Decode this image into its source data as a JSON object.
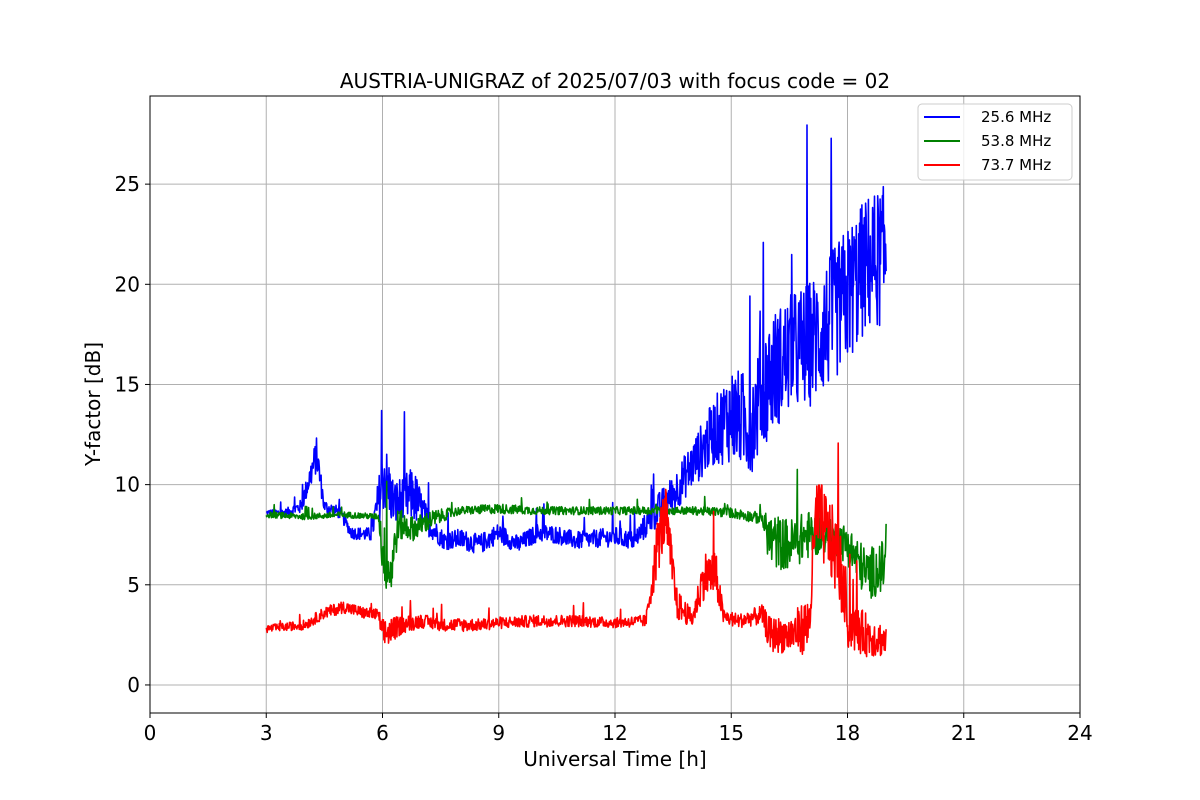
{
  "chart_data": {
    "type": "line",
    "title": "AUSTRIA-UNIGRAZ of 2025/07/03 with focus code = 02",
    "xlabel": "Universal Time [h]",
    "ylabel": "Y-factor [dB]",
    "xlim": [
      0,
      24
    ],
    "ylim": [
      -1.4,
      29.4
    ],
    "xticks": [
      0,
      3,
      6,
      9,
      12,
      15,
      18,
      21,
      24
    ],
    "yticks": [
      0,
      5,
      10,
      15,
      20,
      25
    ],
    "grid": true,
    "legend_position": "top-right",
    "series": [
      {
        "name": "25.6 MHz",
        "color": "#0000ff",
        "points": [
          [
            3.0,
            8.6
          ],
          [
            3.5,
            8.6
          ],
          [
            3.9,
            8.9
          ],
          [
            4.3,
            11.5
          ],
          [
            4.5,
            8.9
          ],
          [
            4.9,
            8.6
          ],
          [
            5.2,
            7.6
          ],
          [
            5.7,
            7.5
          ],
          [
            6.05,
            10.5
          ],
          [
            6.3,
            9.0
          ],
          [
            6.8,
            9.5
          ],
          [
            7.2,
            8.0
          ],
          [
            7.6,
            7.2
          ],
          [
            8.0,
            7.3
          ],
          [
            8.5,
            7.0
          ],
          [
            9.0,
            7.6
          ],
          [
            9.5,
            7.0
          ],
          [
            10.0,
            7.6
          ],
          [
            10.5,
            7.5
          ],
          [
            11.0,
            7.2
          ],
          [
            11.5,
            7.3
          ],
          [
            12.0,
            7.4
          ],
          [
            12.5,
            7.2
          ],
          [
            13.0,
            8.5
          ],
          [
            13.5,
            9.5
          ],
          [
            14.0,
            11.0
          ],
          [
            14.5,
            12.5
          ],
          [
            15.0,
            13.5
          ],
          [
            15.5,
            13.0
          ],
          [
            16.0,
            15.5
          ],
          [
            16.5,
            16.5
          ],
          [
            17.0,
            17.0
          ],
          [
            17.5,
            18.0
          ],
          [
            18.0,
            19.5
          ],
          [
            18.5,
            21.0
          ],
          [
            19.0,
            21.5
          ]
        ],
        "noise": [
          0.15,
          0.2,
          0.35,
          0.9,
          0.35,
          0.3,
          0.3,
          0.35,
          1.8,
          1.2,
          1.4,
          0.6,
          0.45,
          0.5,
          0.5,
          0.5,
          0.45,
          0.45,
          0.45,
          0.45,
          0.45,
          0.5,
          0.45,
          0.8,
          1.0,
          1.2,
          1.6,
          2.4,
          2.5,
          3.0,
          3.0,
          3.2,
          3.3,
          3.5,
          3.5,
          3.5
        ]
      },
      {
        "name": "53.8 MHz",
        "color": "#008000",
        "points": [
          [
            3.0,
            8.5
          ],
          [
            4.0,
            8.4
          ],
          [
            5.0,
            8.5
          ],
          [
            5.9,
            8.4
          ],
          [
            6.0,
            6.8
          ],
          [
            6.2,
            5.5
          ],
          [
            6.4,
            8.0
          ],
          [
            6.8,
            7.8
          ],
          [
            7.2,
            8.2
          ],
          [
            7.6,
            8.5
          ],
          [
            8.0,
            8.7
          ],
          [
            9.0,
            8.8
          ],
          [
            10.0,
            8.7
          ],
          [
            11.0,
            8.7
          ],
          [
            12.0,
            8.7
          ],
          [
            13.0,
            8.7
          ],
          [
            14.0,
            8.7
          ],
          [
            15.0,
            8.6
          ],
          [
            15.8,
            8.3
          ],
          [
            16.0,
            7.2
          ],
          [
            16.5,
            7.0
          ],
          [
            17.0,
            7.5
          ],
          [
            17.5,
            7.5
          ],
          [
            18.0,
            7.0
          ],
          [
            18.5,
            5.5
          ],
          [
            19.0,
            6.0
          ]
        ],
        "noise": [
          0.15,
          0.15,
          0.15,
          0.15,
          1.5,
          1.5,
          0.8,
          0.6,
          0.5,
          0.3,
          0.2,
          0.25,
          0.2,
          0.2,
          0.2,
          0.2,
          0.2,
          0.25,
          0.3,
          1.4,
          1.3,
          1.2,
          0.8,
          1.0,
          1.3,
          1.3
        ]
      },
      {
        "name": "73.7 MHz",
        "color": "#ff0000",
        "points": [
          [
            3.0,
            2.8
          ],
          [
            3.5,
            2.9
          ],
          [
            4.0,
            3.0
          ],
          [
            4.5,
            3.6
          ],
          [
            5.0,
            3.9
          ],
          [
            5.5,
            3.6
          ],
          [
            5.9,
            3.5
          ],
          [
            6.0,
            2.5
          ],
          [
            6.5,
            3.0
          ],
          [
            7.0,
            3.2
          ],
          [
            7.5,
            3.0
          ],
          [
            8.0,
            3.0
          ],
          [
            8.5,
            3.0
          ],
          [
            9.0,
            3.1
          ],
          [
            10.0,
            3.2
          ],
          [
            11.0,
            3.2
          ],
          [
            12.0,
            3.1
          ],
          [
            12.8,
            3.2
          ],
          [
            13.1,
            7.0
          ],
          [
            13.3,
            8.5
          ],
          [
            13.6,
            4.0
          ],
          [
            14.0,
            3.3
          ],
          [
            14.3,
            5.5
          ],
          [
            14.6,
            5.5
          ],
          [
            14.8,
            3.4
          ],
          [
            15.2,
            3.2
          ],
          [
            15.8,
            3.5
          ],
          [
            16.0,
            2.5
          ],
          [
            16.5,
            2.5
          ],
          [
            17.0,
            3.0
          ],
          [
            17.2,
            8.5
          ],
          [
            17.5,
            7.5
          ],
          [
            17.8,
            6.0
          ],
          [
            18.0,
            3.0
          ],
          [
            18.5,
            2.5
          ],
          [
            19.0,
            2.2
          ]
        ],
        "noise": [
          0.2,
          0.2,
          0.25,
          0.3,
          0.3,
          0.3,
          0.3,
          0.8,
          0.45,
          0.35,
          0.3,
          0.35,
          0.3,
          0.3,
          0.3,
          0.3,
          0.25,
          0.3,
          1.5,
          1.5,
          0.8,
          0.4,
          1.2,
          1.2,
          0.4,
          0.35,
          0.5,
          0.9,
          0.9,
          1.5,
          2.0,
          2.0,
          2.0,
          1.2,
          1.1,
          0.8
        ]
      }
    ]
  }
}
